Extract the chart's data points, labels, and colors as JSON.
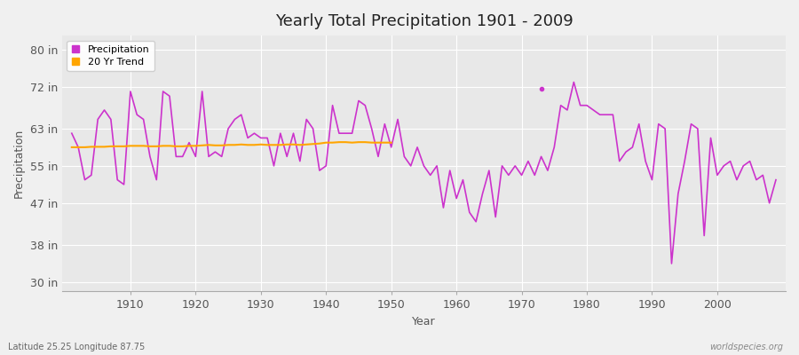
{
  "title": "Yearly Total Precipitation 1901 - 2009",
  "xlabel": "Year",
  "ylabel": "Precipitation",
  "bg_color": "#f0f0f0",
  "plot_bg_color": "#e8e8e8",
  "precip_color": "#cc33cc",
  "trend_color": "#ffa500",
  "yticks": [
    30,
    38,
    47,
    55,
    63,
    72,
    80
  ],
  "ytick_labels": [
    "30 in",
    "38 in",
    "47 in",
    "55 in",
    "63 in",
    "72 in",
    "80 in"
  ],
  "ylim": [
    28,
    83
  ],
  "xlim": [
    1899.5,
    2010.5
  ],
  "years": [
    1901,
    1902,
    1903,
    1904,
    1905,
    1906,
    1907,
    1908,
    1909,
    1910,
    1911,
    1912,
    1913,
    1914,
    1915,
    1916,
    1917,
    1918,
    1919,
    1920,
    1921,
    1922,
    1923,
    1924,
    1925,
    1926,
    1927,
    1928,
    1929,
    1930,
    1931,
    1932,
    1933,
    1934,
    1935,
    1936,
    1937,
    1938,
    1939,
    1940,
    1941,
    1942,
    1943,
    1944,
    1945,
    1946,
    1947,
    1948,
    1949,
    1950,
    1951,
    1952,
    1953,
    1954,
    1955,
    1956,
    1957,
    1958,
    1959,
    1960,
    1961,
    1962,
    1963,
    1964,
    1965,
    1966,
    1967,
    1968,
    1969,
    1970,
    1971,
    1972,
    1973,
    1974,
    1975,
    1976,
    1977,
    1978,
    1979,
    1980,
    1981,
    1982,
    1983,
    1984,
    1985,
    1986,
    1987,
    1988,
    1989,
    1990,
    1991,
    1992,
    1993,
    1994,
    1995,
    1996,
    1997,
    1998,
    1999,
    2000,
    2001,
    2002,
    2003,
    2004,
    2005,
    2006,
    2007,
    2008,
    2009
  ],
  "precip": [
    62,
    59,
    52,
    53,
    65,
    67,
    65,
    52,
    51,
    71,
    66,
    65,
    57,
    52,
    71,
    70,
    57,
    57,
    60,
    57,
    71,
    57,
    58,
    57,
    63,
    65,
    66,
    61,
    62,
    61,
    61,
    55,
    62,
    57,
    62,
    56,
    65,
    63,
    54,
    55,
    68,
    62,
    62,
    62,
    69,
    68,
    63,
    57,
    64,
    59,
    65,
    57,
    55,
    59,
    55,
    53,
    55,
    46,
    54,
    48,
    52,
    45,
    43,
    49,
    54,
    44,
    55,
    53,
    55,
    53,
    56,
    53,
    57,
    54,
    59,
    68,
    67,
    73,
    68,
    68,
    67,
    66,
    66,
    66,
    56,
    58,
    59,
    64,
    56,
    52,
    64,
    63,
    34,
    49,
    56,
    64,
    63,
    40,
    61,
    53,
    55,
    56,
    52,
    55,
    56,
    52,
    53,
    47,
    52
  ],
  "trend_years": [
    1901,
    1902,
    1903,
    1904,
    1905,
    1906,
    1907,
    1908,
    1909,
    1910,
    1911,
    1912,
    1913,
    1914,
    1915,
    1916,
    1917,
    1918,
    1919,
    1920,
    1921,
    1922,
    1923,
    1924,
    1925,
    1926,
    1927,
    1928,
    1929,
    1930,
    1931,
    1932,
    1933,
    1934,
    1935,
    1936,
    1937,
    1938,
    1939,
    1940,
    1941,
    1942,
    1943,
    1944,
    1945,
    1946,
    1947,
    1948,
    1949,
    1950
  ],
  "trend": [
    59.0,
    59.0,
    59.0,
    59.1,
    59.1,
    59.1,
    59.2,
    59.2,
    59.2,
    59.3,
    59.3,
    59.3,
    59.2,
    59.2,
    59.3,
    59.3,
    59.2,
    59.2,
    59.3,
    59.3,
    59.4,
    59.5,
    59.4,
    59.4,
    59.5,
    59.5,
    59.6,
    59.5,
    59.5,
    59.6,
    59.5,
    59.5,
    59.5,
    59.6,
    59.6,
    59.5,
    59.6,
    59.7,
    59.8,
    60.0,
    60.0,
    60.1,
    60.1,
    60.0,
    60.1,
    60.1,
    60.0,
    60.0,
    60.0,
    60.0
  ],
  "dot_year": 1973,
  "dot_value": 71.5,
  "watermark": "worldspecies.org",
  "location_label": "Latitude 25.25 Longitude 87.75",
  "xticks": [
    1910,
    1920,
    1930,
    1940,
    1950,
    1960,
    1970,
    1980,
    1990,
    2000
  ],
  "grid_color": "#ffffff",
  "grid_alpha": 0.9,
  "spine_color": "#aaaaaa",
  "tick_color": "#555555",
  "title_fontsize": 13,
  "axis_fontsize": 9,
  "label_fontsize": 9
}
